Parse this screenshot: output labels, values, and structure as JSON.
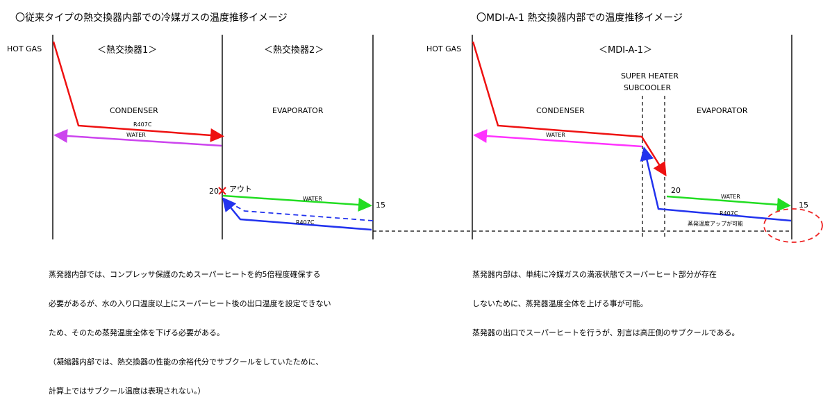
{
  "left": {
    "title": "〇従来タイプの熱交換器内部での冷媒ガスの温度推移イメージ",
    "hot_gas": "HOT GAS",
    "hx1": "＜熱交換器1＞",
    "hx2": "＜熱交換器2＞",
    "condenser": "CONDENSER",
    "evaporator": "EVAPORATOR",
    "r407c_cond": "R407C",
    "water_cond": "WATER",
    "out_label": "アウト",
    "temp_in": "20",
    "water_evap": "WATER",
    "r407c_evap": "R407C",
    "temp_out": "15",
    "note_lines": [
      "蒸発器内部では、コンプレッサ保護のためスーパーヒートを約5倍程度確保する",
      "必要があるが、水の入り口温度以上にスーパーヒート後の出口温度を設定できない",
      "ため、そのため蒸発温度全体を下げる必要がある。",
      "（凝縮器内部では、熱交換器の性能の余裕代分でサブクールをしていたために、",
      "計算上ではサブクール温度は表現されない。）"
    ]
  },
  "right": {
    "title": "〇MDI-A-1 熱交換器内部での温度推移イメージ",
    "hot_gas": "HOT GAS",
    "mdi": "＜MDI-A-1＞",
    "super_heater": "SUPER HEATER",
    "subcooler": "SUBCOOLER",
    "condenser": "CONDENSER",
    "evaporator": "EVAPORATOR",
    "water_cond": "WATER",
    "temp_in": "20",
    "water_evap": "WATER",
    "r407c_evap": "R407C",
    "temp_out": "15",
    "temp_up_note": "蒸発温度アップが可能",
    "note_lines": [
      "蒸発器内部は、単純に冷媒ガスの満液状態でスーパーヒート部分が存在",
      "しないために、蒸発器温度全体を上げる事が可能。",
      "蒸発器の出口でスーパーヒートを行うが、別言は高圧側のサブクールである。"
    ]
  },
  "colors": {
    "refrigerant": "#ff2020",
    "water_condenser": "#cc44ee",
    "water_condenser_right": "#ff33ff",
    "water_evaporator": "#22dd22",
    "refrigerant_evap": "#2233ee",
    "highlight": "#ee2222"
  }
}
